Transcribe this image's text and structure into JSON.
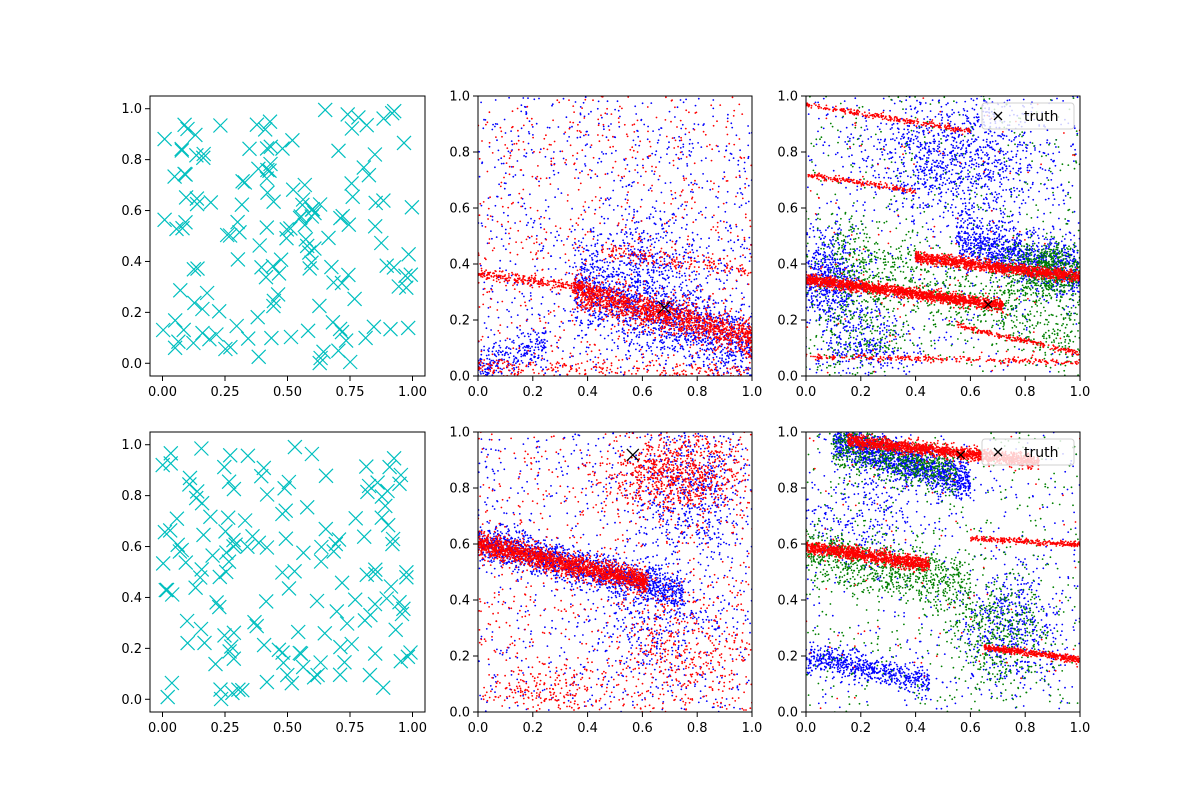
{
  "figure": {
    "background": "#ffffff"
  },
  "chart_data": [
    {
      "type": "scatter",
      "panel": "top-left",
      "title": "",
      "xlabel": "",
      "ylabel": "",
      "xlim": [
        -0.05,
        1.05
      ],
      "ylim": [
        -0.05,
        1.05
      ],
      "xticks": [
        "0.00",
        "0.25",
        "0.50",
        "0.75",
        "1.00"
      ],
      "yticks": [
        "0.0",
        "0.2",
        "0.4",
        "0.6",
        "0.8",
        "1.0"
      ],
      "marker": "x",
      "series": [
        {
          "name": "samples",
          "color": "#00bfbf",
          "marker": "x",
          "count": 150,
          "distribution": {
            "kind": "uniform",
            "seed": 11,
            "x": [
              0,
              1
            ],
            "y": [
              0,
              1
            ]
          }
        }
      ],
      "legend": null
    },
    {
      "type": "scatter",
      "panel": "top-middle",
      "xlim": [
        0,
        1
      ],
      "ylim": [
        0,
        1
      ],
      "xticks": [
        "0.0",
        "0.2",
        "0.4",
        "0.6",
        "0.8",
        "1.0"
      ],
      "yticks": [
        "0.0",
        "0.2",
        "0.4",
        "0.6",
        "0.8",
        "1.0"
      ],
      "series": [
        {
          "name": "blue",
          "color": "#0000ff",
          "marker": "dot",
          "seed": 21,
          "components": [
            {
              "kind": "uniform",
              "count": 900
            },
            {
              "kind": "band",
              "count": 1400,
              "x0": 0.35,
              "x1": 1.0,
              "y_at_x0": 0.33,
              "slope": -0.35,
              "spread": 0.07
            },
            {
              "kind": "cluster",
              "count": 350,
              "cx": 0.62,
              "cy": 0.42,
              "sx": 0.13,
              "sy": 0.09
            },
            {
              "kind": "band",
              "count": 250,
              "x0": 0.0,
              "x1": 0.25,
              "y_at_x0": 0.03,
              "slope": 0.35,
              "spread": 0.04
            }
          ]
        },
        {
          "name": "red",
          "color": "#ff0000",
          "marker": "dot",
          "seed": 22,
          "components": [
            {
              "kind": "uniform",
              "count": 700
            },
            {
              "kind": "band",
              "count": 1400,
              "x0": 0.35,
              "x1": 1.0,
              "y_at_x0": 0.3,
              "slope": -0.25,
              "spread": 0.03
            },
            {
              "kind": "band",
              "count": 280,
              "x0": 0.0,
              "x1": 0.45,
              "y_at_x0": 0.37,
              "slope": -0.15,
              "spread": 0.01
            },
            {
              "kind": "band",
              "count": 260,
              "x0": 0.0,
              "x1": 1.0,
              "y_at_x0": 0.03,
              "slope": -0.02,
              "spread": 0.02
            },
            {
              "kind": "band",
              "count": 160,
              "x0": 0.45,
              "x1": 1.0,
              "y_at_x0": 0.45,
              "slope": -0.15,
              "spread": 0.015
            }
          ]
        }
      ],
      "truth": {
        "x": 0.68,
        "y": 0.245,
        "marker_size": "large"
      },
      "legend": null
    },
    {
      "type": "scatter",
      "panel": "top-right",
      "xlim": [
        0,
        1
      ],
      "ylim": [
        0,
        1
      ],
      "xticks": [
        "0.0",
        "0.2",
        "0.4",
        "0.6",
        "0.8",
        "1.0"
      ],
      "yticks": [
        "0.0",
        "0.2",
        "0.4",
        "0.6",
        "0.8",
        "1.0"
      ],
      "series": [
        {
          "name": "blue",
          "color": "#0000ff",
          "marker": "dot",
          "seed": 31,
          "components": [
            {
              "kind": "uniform",
              "count": 500
            },
            {
              "kind": "cluster",
              "count": 1100,
              "cx": 0.55,
              "cy": 0.78,
              "sx": 0.18,
              "sy": 0.12
            },
            {
              "kind": "band",
              "count": 1000,
              "x0": 0.55,
              "x1": 1.0,
              "y_at_x0": 0.5,
              "slope": -0.3,
              "spread": 0.05
            },
            {
              "kind": "cluster",
              "count": 600,
              "cx": 0.08,
              "cy": 0.35,
              "sx": 0.06,
              "sy": 0.08
            },
            {
              "kind": "cluster",
              "count": 300,
              "cx": 0.2,
              "cy": 0.12,
              "sx": 0.08,
              "sy": 0.06
            }
          ]
        },
        {
          "name": "green",
          "color": "#008000",
          "marker": "dot",
          "seed": 32,
          "components": [
            {
              "kind": "uniform",
              "count": 500
            },
            {
              "kind": "band",
              "count": 700,
              "x0": 0.1,
              "x1": 1.0,
              "y_at_x0": 0.45,
              "slope": -0.35,
              "spread": 0.07
            },
            {
              "kind": "cluster",
              "count": 700,
              "cx": 0.88,
              "cy": 0.38,
              "sx": 0.09,
              "sy": 0.05
            },
            {
              "kind": "cluster",
              "count": 300,
              "cx": 0.2,
              "cy": 0.2,
              "sx": 0.1,
              "sy": 0.12
            }
          ]
        },
        {
          "name": "red",
          "color": "#ff0000",
          "marker": "dot",
          "seed": 33,
          "components": [
            {
              "kind": "band",
              "count": 1700,
              "x0": 0.0,
              "x1": 0.72,
              "y_at_x0": 0.345,
              "slope": -0.13,
              "spread": 0.01
            },
            {
              "kind": "band",
              "count": 1300,
              "x0": 0.4,
              "x1": 1.0,
              "y_at_x0": 0.425,
              "slope": -0.12,
              "spread": 0.01
            },
            {
              "kind": "band",
              "count": 260,
              "x0": 0.0,
              "x1": 0.6,
              "y_at_x0": 0.97,
              "slope": -0.16,
              "spread": 0.005
            },
            {
              "kind": "band",
              "count": 260,
              "x0": 0.0,
              "x1": 1.0,
              "y_at_x0": 0.07,
              "slope": -0.02,
              "spread": 0.005
            },
            {
              "kind": "band",
              "count": 220,
              "x0": 0.55,
              "x1": 1.0,
              "y_at_x0": 0.18,
              "slope": -0.22,
              "spread": 0.005
            },
            {
              "kind": "band",
              "count": 200,
              "x0": 0.0,
              "x1": 0.4,
              "y_at_x0": 0.72,
              "slope": -0.15,
              "spread": 0.005
            },
            {
              "kind": "uniform",
              "count": 120
            }
          ]
        }
      ],
      "truth": {
        "x": 0.665,
        "y": 0.255,
        "marker_size": "small"
      },
      "legend": {
        "label": "truth",
        "location": "upper right"
      }
    },
    {
      "type": "scatter",
      "panel": "bottom-left",
      "xlim": [
        -0.05,
        1.05
      ],
      "ylim": [
        -0.05,
        1.05
      ],
      "xticks": [
        "0.00",
        "0.25",
        "0.50",
        "0.75",
        "1.00"
      ],
      "yticks": [
        "0.0",
        "0.2",
        "0.4",
        "0.6",
        "0.8",
        "1.0"
      ],
      "marker": "x",
      "series": [
        {
          "name": "samples",
          "color": "#00bfbf",
          "marker": "x",
          "count": 150,
          "distribution": {
            "kind": "uniform",
            "seed": 41,
            "x": [
              0,
              1
            ],
            "y": [
              0,
              1
            ]
          }
        }
      ],
      "legend": null
    },
    {
      "type": "scatter",
      "panel": "bottom-middle",
      "xlim": [
        0,
        1
      ],
      "ylim": [
        0,
        1
      ],
      "xticks": [
        "0.0",
        "0.2",
        "0.4",
        "0.6",
        "0.8",
        "1.0"
      ],
      "yticks": [
        "0.0",
        "0.2",
        "0.4",
        "0.6",
        "0.8",
        "1.0"
      ],
      "series": [
        {
          "name": "blue",
          "color": "#0000ff",
          "marker": "dot",
          "seed": 51,
          "components": [
            {
              "kind": "uniform",
              "count": 700
            },
            {
              "kind": "band",
              "count": 1500,
              "x0": 0.0,
              "x1": 0.75,
              "y_at_x0": 0.61,
              "slope": -0.25,
              "spread": 0.035
            },
            {
              "kind": "cluster",
              "count": 600,
              "cx": 0.78,
              "cy": 0.78,
              "sx": 0.12,
              "sy": 0.12
            },
            {
              "kind": "cluster",
              "count": 300,
              "cx": 0.65,
              "cy": 0.3,
              "sx": 0.15,
              "sy": 0.1
            }
          ]
        },
        {
          "name": "red",
          "color": "#ff0000",
          "marker": "dot",
          "seed": 52,
          "components": [
            {
              "kind": "uniform",
              "count": 700
            },
            {
              "kind": "band",
              "count": 1800,
              "x0": 0.0,
              "x1": 0.62,
              "y_at_x0": 0.6,
              "slope": -0.22,
              "spread": 0.02
            },
            {
              "kind": "cluster",
              "count": 800,
              "cx": 0.72,
              "cy": 0.85,
              "sx": 0.12,
              "sy": 0.07
            },
            {
              "kind": "cluster",
              "count": 350,
              "cx": 0.75,
              "cy": 0.2,
              "sx": 0.12,
              "sy": 0.12
            },
            {
              "kind": "cluster",
              "count": 200,
              "cx": 0.25,
              "cy": 0.08,
              "sx": 0.15,
              "sy": 0.05
            }
          ]
        }
      ],
      "truth": {
        "x": 0.565,
        "y": 0.918,
        "marker_size": "large"
      },
      "legend": null
    },
    {
      "type": "scatter",
      "panel": "bottom-right",
      "xlim": [
        0,
        1
      ],
      "ylim": [
        0,
        1
      ],
      "xticks": [
        "0.0",
        "0.2",
        "0.4",
        "0.6",
        "0.8",
        "1.0"
      ],
      "yticks": [
        "0.0",
        "0.2",
        "0.4",
        "0.6",
        "0.8",
        "1.0"
      ],
      "series": [
        {
          "name": "blue",
          "color": "#0000ff",
          "marker": "dot",
          "seed": 61,
          "components": [
            {
              "kind": "uniform",
              "count": 400
            },
            {
              "kind": "band",
              "count": 1300,
              "x0": 0.1,
              "x1": 0.6,
              "y_at_x0": 0.97,
              "slope": -0.3,
              "spread": 0.035
            },
            {
              "kind": "band",
              "count": 600,
              "x0": 0.0,
              "x1": 0.45,
              "y_at_x0": 0.2,
              "slope": -0.2,
              "spread": 0.025
            },
            {
              "kind": "cluster",
              "count": 500,
              "cx": 0.75,
              "cy": 0.3,
              "sx": 0.1,
              "sy": 0.12
            },
            {
              "kind": "cluster",
              "count": 300,
              "cx": 0.2,
              "cy": 0.7,
              "sx": 0.15,
              "sy": 0.1
            }
          ]
        },
        {
          "name": "green",
          "color": "#008000",
          "marker": "dot",
          "seed": 62,
          "components": [
            {
              "kind": "uniform",
              "count": 500
            },
            {
              "kind": "band",
              "count": 800,
              "x0": 0.0,
              "x1": 0.6,
              "y_at_x0": 0.57,
              "slope": -0.2,
              "spread": 0.05
            },
            {
              "kind": "band",
              "count": 600,
              "x0": 0.1,
              "x1": 0.55,
              "y_at_x0": 0.96,
              "slope": -0.25,
              "spread": 0.04
            },
            {
              "kind": "cluster",
              "count": 400,
              "cx": 0.7,
              "cy": 0.3,
              "sx": 0.1,
              "sy": 0.1
            }
          ]
        },
        {
          "name": "red",
          "color": "#ff0000",
          "marker": "dot",
          "seed": 63,
          "components": [
            {
              "kind": "band",
              "count": 1500,
              "x0": 0.15,
              "x1": 0.85,
              "y_at_x0": 0.97,
              "slope": -0.11,
              "spread": 0.012
            },
            {
              "kind": "band",
              "count": 1100,
              "x0": 0.0,
              "x1": 0.45,
              "y_at_x0": 0.59,
              "slope": -0.14,
              "spread": 0.012
            },
            {
              "kind": "band",
              "count": 450,
              "x0": 0.65,
              "x1": 1.0,
              "y_at_x0": 0.23,
              "slope": -0.12,
              "spread": 0.006
            },
            {
              "kind": "band",
              "count": 250,
              "x0": 0.6,
              "x1": 1.0,
              "y_at_x0": 0.62,
              "slope": -0.06,
              "spread": 0.005
            },
            {
              "kind": "uniform",
              "count": 100
            }
          ]
        }
      ],
      "truth": {
        "x": 0.565,
        "y": 0.918,
        "marker_size": "small"
      },
      "legend": {
        "label": "truth",
        "location": "upper right"
      }
    }
  ]
}
